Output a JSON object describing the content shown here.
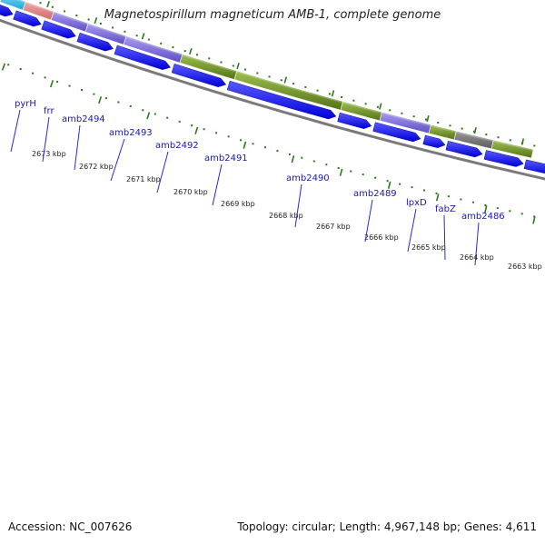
{
  "title": "Magnetospirillum magneticum AMB-1, complete genome",
  "footer": {
    "accession": "Accession: NC_007626",
    "summary": "Topology: circular; Length: 4,967,148 bp; Genes: 4,611"
  },
  "colors": {
    "gene_label": "#1a1aa8",
    "cds_arrow": "#1212e6",
    "tick": "#2a7a1a",
    "backbone": "#7a7a7a",
    "cog_cyan": "#35b8e6",
    "cog_salmon": "#e08080",
    "cog_purple": "#7a6ad8",
    "cog_olive": "#6f9428",
    "cog_gray": "#777777"
  },
  "ruler": [
    {
      "label": "2673 kbp",
      "kbp": 2673
    },
    {
      "label": "2672 kbp",
      "kbp": 2672
    },
    {
      "label": "2671 kbp",
      "kbp": 2671
    },
    {
      "label": "2670 kbp",
      "kbp": 2670
    },
    {
      "label": "2669 kbp",
      "kbp": 2669
    },
    {
      "label": "2668 kbp",
      "kbp": 2668
    },
    {
      "label": "2667 kbp",
      "kbp": 2667
    },
    {
      "label": "2666 kbp",
      "kbp": 2666
    },
    {
      "label": "2665 kbp",
      "kbp": 2665
    },
    {
      "label": "2664 kbp",
      "kbp": 2664
    },
    {
      "label": "2663 kbp",
      "kbp": 2663
    }
  ],
  "genes": [
    {
      "name": "pyrH"
    },
    {
      "name": "frr"
    },
    {
      "name": "amb2494"
    },
    {
      "name": "amb2493"
    },
    {
      "name": "amb2492"
    },
    {
      "name": "amb2491"
    },
    {
      "name": "amb2490"
    },
    {
      "name": "amb2489"
    },
    {
      "name": "lpxD"
    },
    {
      "name": "fabZ"
    },
    {
      "name": "amb2486"
    }
  ],
  "cog_segments": [
    {
      "color": "cyan"
    },
    {
      "color": "salmon"
    },
    {
      "color": "purple"
    },
    {
      "color": "purple"
    },
    {
      "color": "purple"
    },
    {
      "color": "olive"
    },
    {
      "color": "olive"
    },
    {
      "color": "olive"
    },
    {
      "color": "purple"
    },
    {
      "color": "olive"
    },
    {
      "color": "gray"
    },
    {
      "color": "olive"
    }
  ]
}
